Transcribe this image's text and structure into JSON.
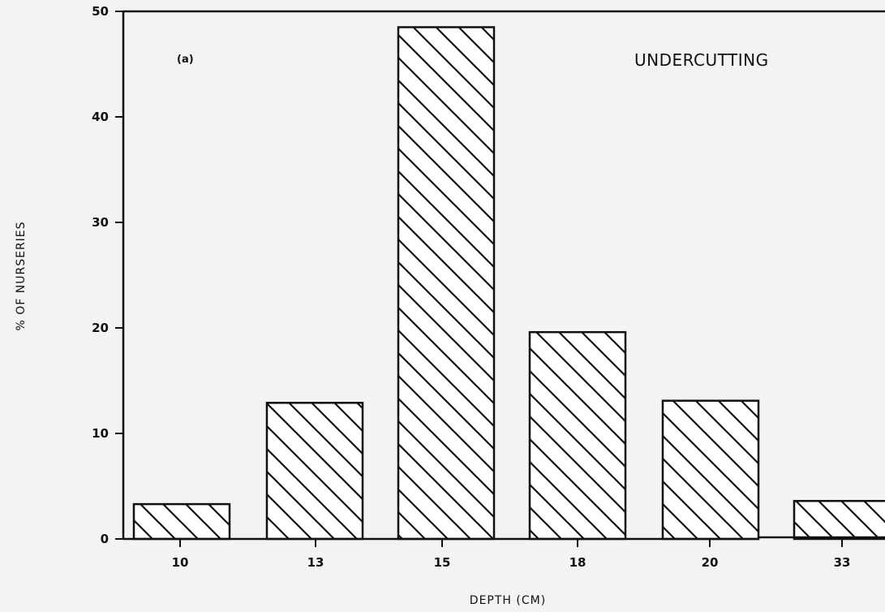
{
  "chart_data": {
    "type": "bar",
    "title": "UNDERCUTTING",
    "panel_label": "(a)",
    "xlabel": "DEPTH (CM)",
    "ylabel": "% OF NURSERIES",
    "categories": [
      "10",
      "13",
      "15",
      "18",
      "20",
      "33"
    ],
    "values": [
      3.3,
      12.9,
      48.5,
      19.6,
      13.1,
      3.6
    ],
    "ylim": [
      0,
      50
    ],
    "yticks": [
      "0",
      "10",
      "20",
      "30",
      "40",
      "50"
    ],
    "grid": false,
    "legend": "none",
    "bar_fill": "#ffffff",
    "stroke_color": "#111111"
  }
}
